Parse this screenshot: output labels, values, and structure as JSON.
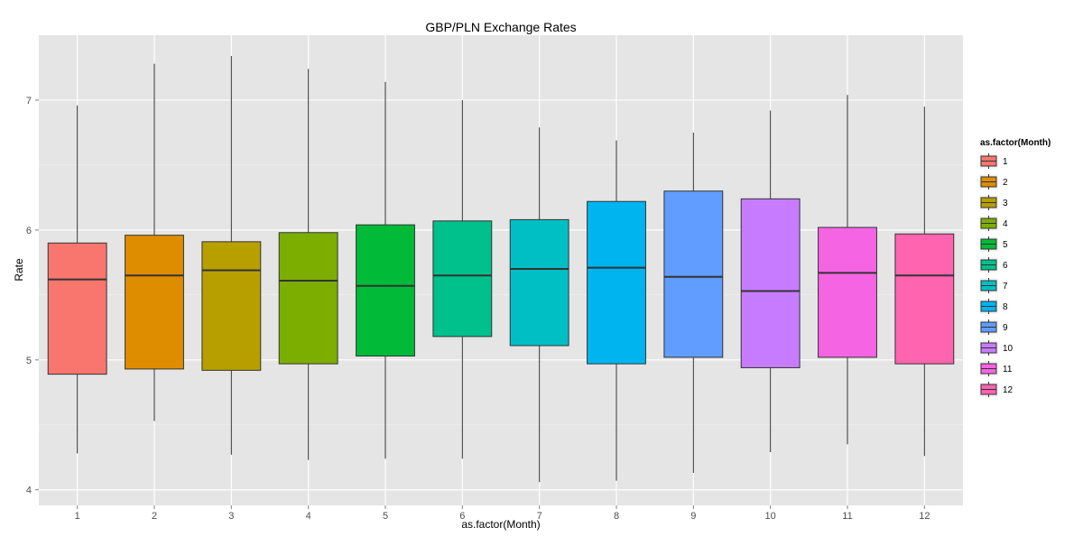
{
  "chart_data": {
    "type": "boxplot",
    "title": "GBP/PLN Exchange Rates",
    "xlabel": "as.factor(Month)",
    "ylabel": "Rate",
    "categories": [
      "1",
      "2",
      "3",
      "4",
      "5",
      "6",
      "7",
      "8",
      "9",
      "10",
      "11",
      "12"
    ],
    "ylim": [
      3.88,
      7.5
    ],
    "yticks": [
      4,
      5,
      6,
      7
    ],
    "grid": true,
    "legend": {
      "title": "as.factor(Month)",
      "position": "right",
      "entries": [
        "1",
        "2",
        "3",
        "4",
        "5",
        "6",
        "7",
        "8",
        "9",
        "10",
        "11",
        "12"
      ]
    },
    "series": [
      {
        "category": "1",
        "min": 4.28,
        "q1": 4.89,
        "median": 5.62,
        "q3": 5.9,
        "max": 6.96,
        "color": "#F8766D"
      },
      {
        "category": "2",
        "min": 4.53,
        "q1": 4.93,
        "median": 5.65,
        "q3": 5.96,
        "max": 7.28,
        "color": "#DE8C00"
      },
      {
        "category": "3",
        "min": 4.27,
        "q1": 4.92,
        "median": 5.69,
        "q3": 5.91,
        "max": 7.34,
        "color": "#B79F00"
      },
      {
        "category": "4",
        "min": 4.23,
        "q1": 4.97,
        "median": 5.61,
        "q3": 5.98,
        "max": 7.24,
        "color": "#7CAE00"
      },
      {
        "category": "5",
        "min": 4.24,
        "q1": 5.03,
        "median": 5.57,
        "q3": 6.04,
        "max": 7.14,
        "color": "#00BA38"
      },
      {
        "category": "6",
        "min": 4.24,
        "q1": 5.18,
        "median": 5.65,
        "q3": 6.07,
        "max": 7.0,
        "color": "#00C08B"
      },
      {
        "category": "7",
        "min": 4.06,
        "q1": 5.11,
        "median": 5.7,
        "q3": 6.08,
        "max": 6.79,
        "color": "#00BFC4"
      },
      {
        "category": "8",
        "min": 4.07,
        "q1": 4.97,
        "median": 5.71,
        "q3": 6.22,
        "max": 6.69,
        "color": "#00B4F0"
      },
      {
        "category": "9",
        "min": 4.13,
        "q1": 5.02,
        "median": 5.64,
        "q3": 6.3,
        "max": 6.75,
        "color": "#619CFF"
      },
      {
        "category": "10",
        "min": 4.29,
        "q1": 4.94,
        "median": 5.53,
        "q3": 6.24,
        "max": 6.92,
        "color": "#C77CFF"
      },
      {
        "category": "11",
        "min": 4.35,
        "q1": 5.02,
        "median": 5.67,
        "q3": 6.02,
        "max": 7.04,
        "color": "#F564E3"
      },
      {
        "category": "12",
        "min": 4.26,
        "q1": 4.97,
        "median": 5.65,
        "q3": 5.97,
        "max": 6.95,
        "color": "#FF64B0"
      }
    ]
  }
}
